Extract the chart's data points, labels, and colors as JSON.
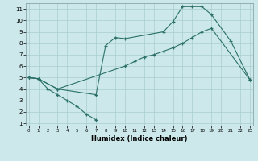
{
  "bg_color": "#cce8ea",
  "grid_color": "#aacdd0",
  "line_color": "#2a7068",
  "xlabel": "Humidex (Indice chaleur)",
  "line1_x": [
    0,
    1,
    2,
    3,
    4,
    5,
    6,
    7
  ],
  "line1_y": [
    5,
    4.9,
    4.0,
    3.5,
    3.0,
    2.5,
    1.8,
    1.3
  ],
  "line2_x": [
    0,
    1,
    3,
    7,
    8,
    9,
    10,
    14,
    15,
    16,
    17,
    18,
    19,
    21,
    23
  ],
  "line2_y": [
    5,
    4.9,
    4.0,
    3.5,
    7.8,
    8.5,
    8.4,
    9.0,
    9.9,
    11.2,
    11.2,
    11.2,
    10.5,
    8.2,
    4.8
  ],
  "line3_x": [
    0,
    1,
    3,
    10,
    11,
    12,
    13,
    14,
    15,
    16,
    17,
    18,
    19,
    23
  ],
  "line3_y": [
    5,
    4.9,
    4.0,
    6.0,
    6.4,
    6.8,
    7.0,
    7.3,
    7.6,
    8.0,
    8.5,
    9.0,
    9.3,
    4.8
  ],
  "xticks": [
    0,
    1,
    2,
    3,
    4,
    5,
    6,
    7,
    8,
    9,
    10,
    11,
    12,
    13,
    14,
    15,
    16,
    17,
    18,
    19,
    20,
    21,
    22,
    23
  ],
  "yticks": [
    1,
    2,
    3,
    4,
    5,
    6,
    7,
    8,
    9,
    10,
    11
  ],
  "xlim": [
    -0.3,
    23.3
  ],
  "ylim": [
    0.8,
    11.5
  ]
}
